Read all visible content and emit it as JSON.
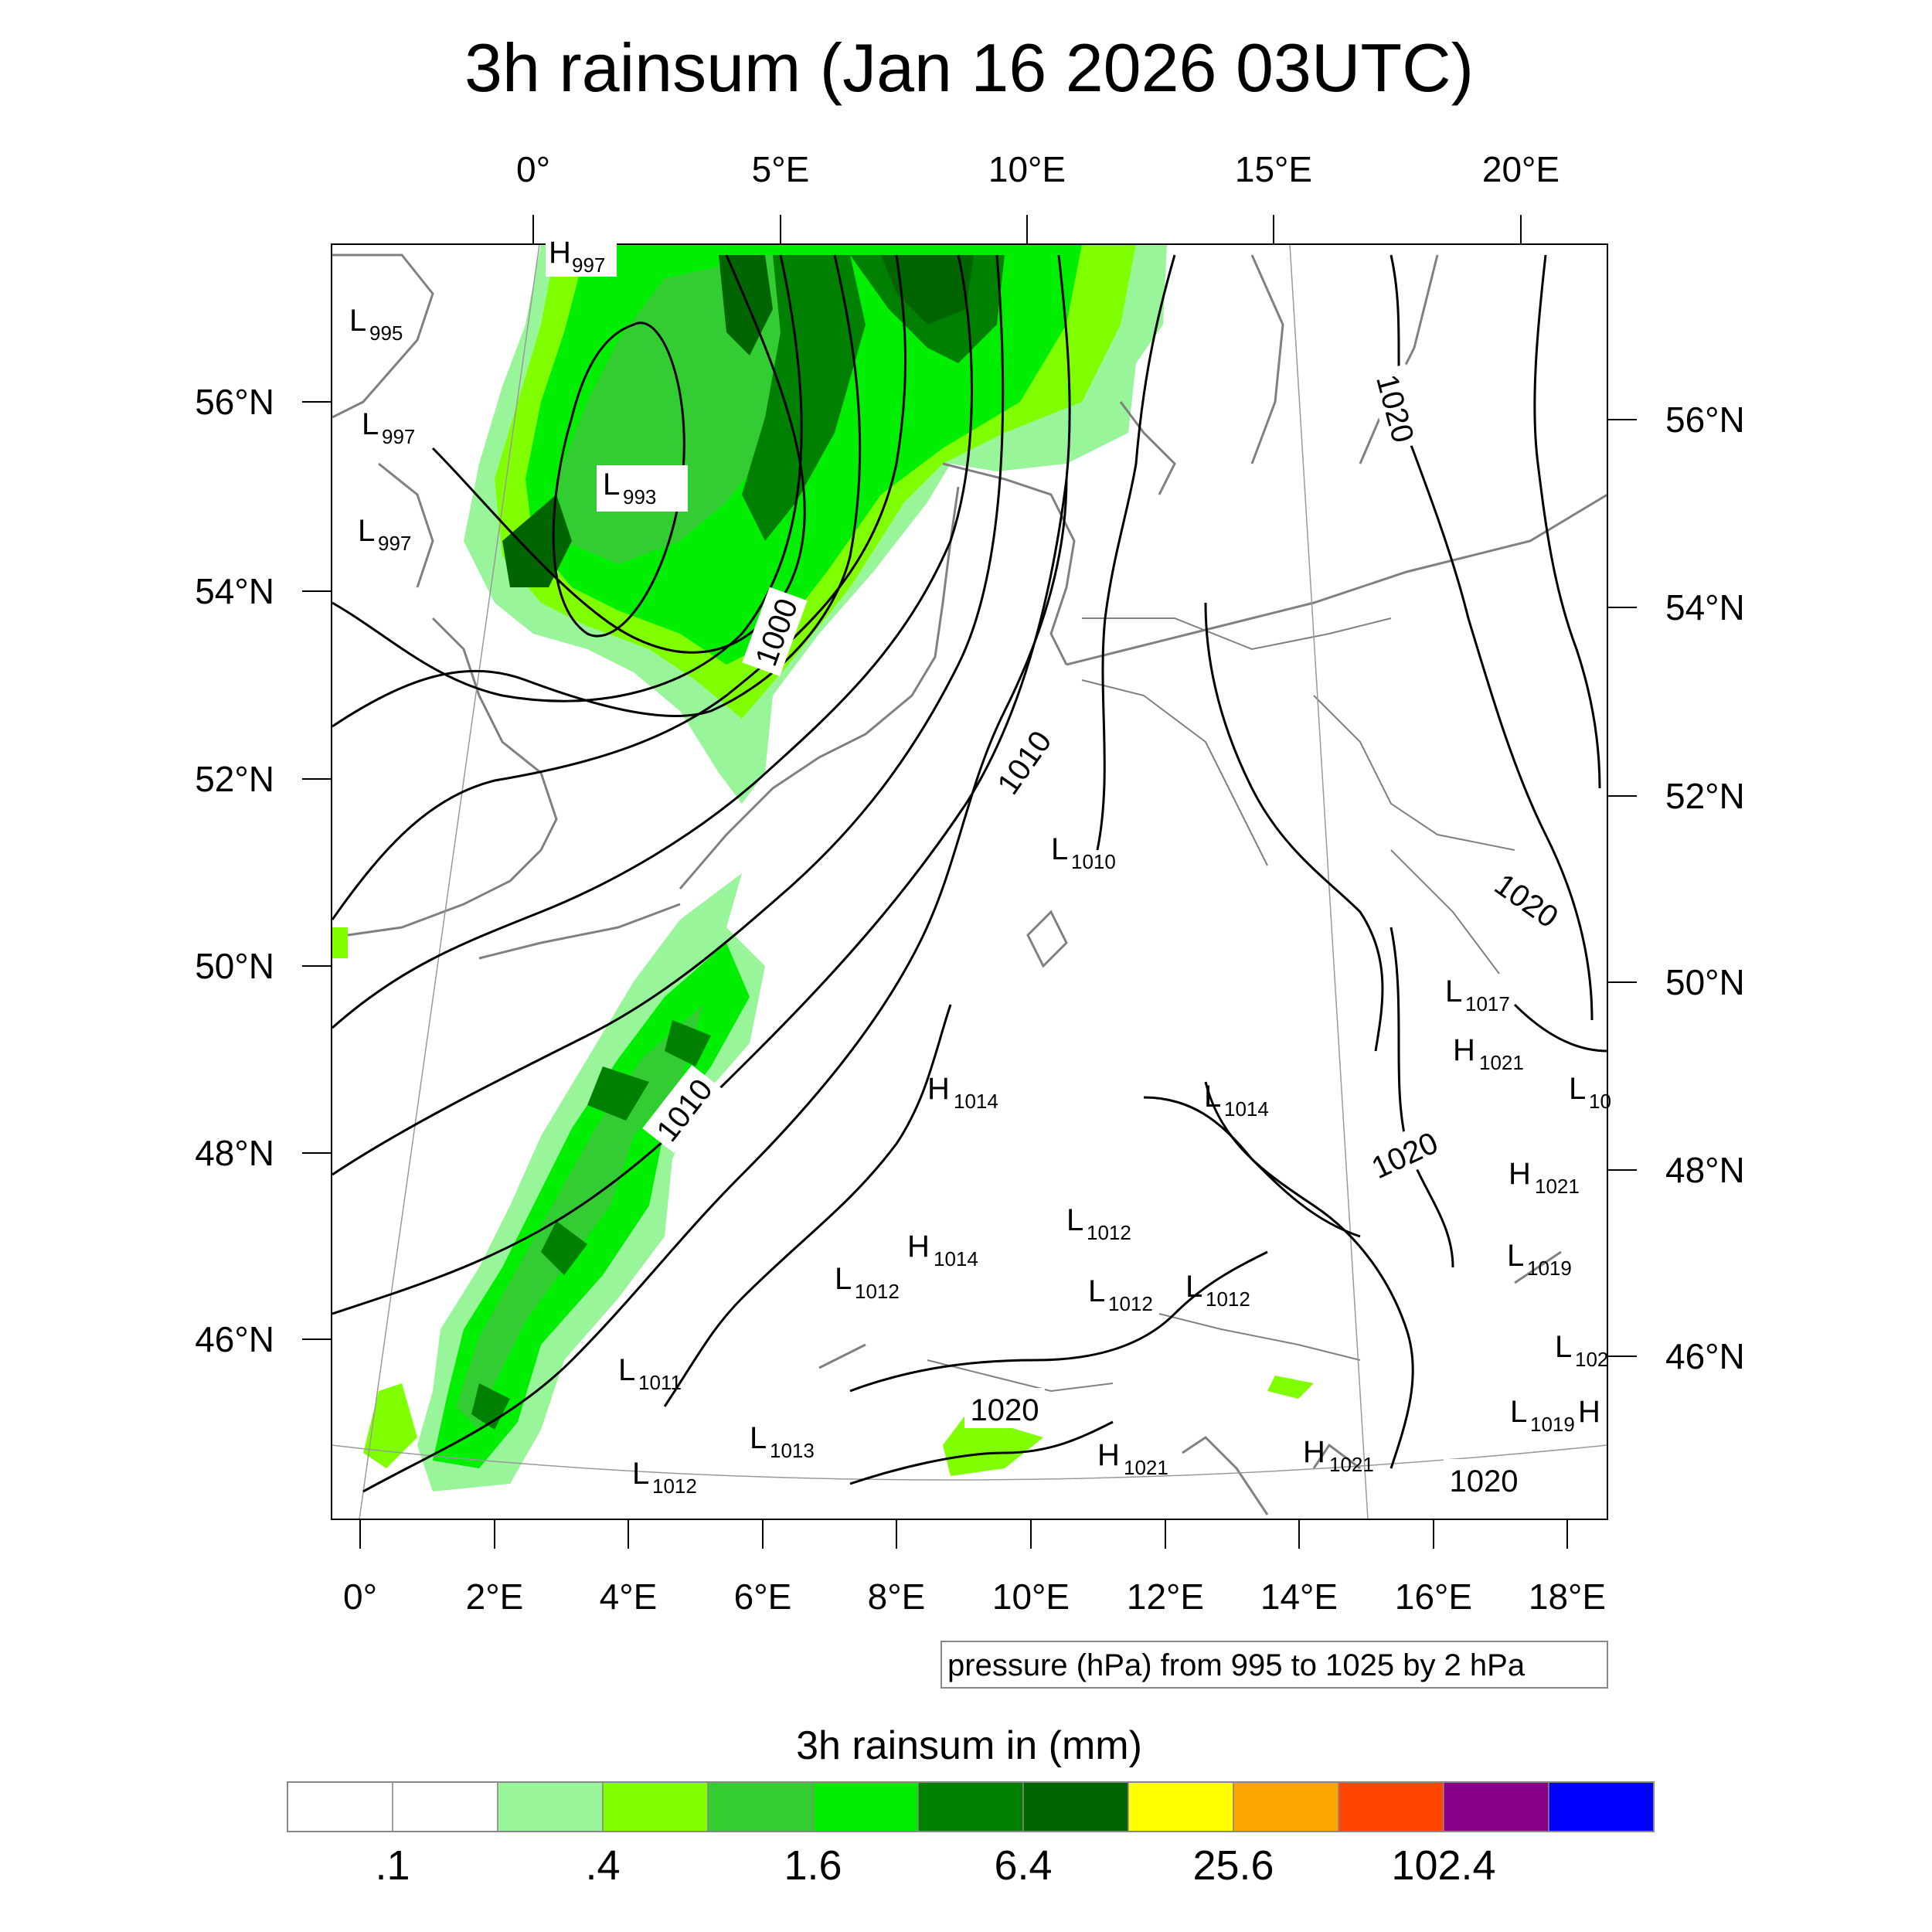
{
  "title": "3h rainsum (Jan 16 2026 03UTC)",
  "top_axis_labels": [
    "0°",
    "5°E",
    "10°E",
    "15°E",
    "20°E"
  ],
  "bottom_axis_labels": [
    "0°",
    "2°E",
    "4°E",
    "6°E",
    "8°E",
    "10°E",
    "12°E",
    "14°E",
    "16°E",
    "18°E"
  ],
  "left_axis_labels": [
    "56°N",
    "54°N",
    "52°N",
    "50°N",
    "48°N",
    "46°N"
  ],
  "right_axis_labels": [
    "56°N",
    "54°N",
    "52°N",
    "50°N",
    "48°N",
    "46°N"
  ],
  "contour_labels": [
    "1000",
    "1010",
    "1010",
    "1020",
    "1020",
    "1020",
    "1020",
    "1020"
  ],
  "pressure_centers": [
    {
      "type": "H",
      "value": "997"
    },
    {
      "type": "L",
      "value": "995"
    },
    {
      "type": "L",
      "value": "997"
    },
    {
      "type": "L",
      "value": "997"
    },
    {
      "type": "L",
      "value": "993"
    },
    {
      "type": "L",
      "value": "1010"
    },
    {
      "type": "H",
      "value": "1014"
    },
    {
      "type": "L",
      "value": "1014"
    },
    {
      "type": "L",
      "value": "1017"
    },
    {
      "type": "H",
      "value": "1021"
    },
    {
      "type": "L",
      "value": "10"
    },
    {
      "type": "H",
      "value": "1021"
    },
    {
      "type": "L",
      "value": "1012"
    },
    {
      "type": "H",
      "value": "1014"
    },
    {
      "type": "L",
      "value": "1012"
    },
    {
      "type": "L",
      "value": "1012"
    },
    {
      "type": "L",
      "value": "1012"
    },
    {
      "type": "L",
      "value": "1019"
    },
    {
      "type": "L",
      "value": "1011"
    },
    {
      "type": "L",
      "value": "102"
    },
    {
      "type": "L",
      "value": "1013"
    },
    {
      "type": "L",
      "value": "1019"
    },
    {
      "type": "H",
      "value": ""
    },
    {
      "type": "L",
      "value": "1012"
    },
    {
      "type": "H",
      "value": "1021"
    },
    {
      "type": "H",
      "value": "1021"
    }
  ],
  "contour_info": "pressure (hPa) from 995 to 1025 by 2 hPa",
  "colorbar": {
    "title": "3h rainsum in (mm)",
    "tick_labels": [
      ".1",
      ".4",
      "1.6",
      "6.4",
      "25.6",
      "102.4"
    ],
    "colors": [
      "#ffffff",
      "#ffffff",
      "#99f599",
      "#80ff00",
      "#33cc33",
      "#00ee00",
      "#008000",
      "#006400",
      "#ffff00",
      "#ffa500",
      "#ff4500",
      "#8b008b",
      "#0000ff"
    ]
  }
}
